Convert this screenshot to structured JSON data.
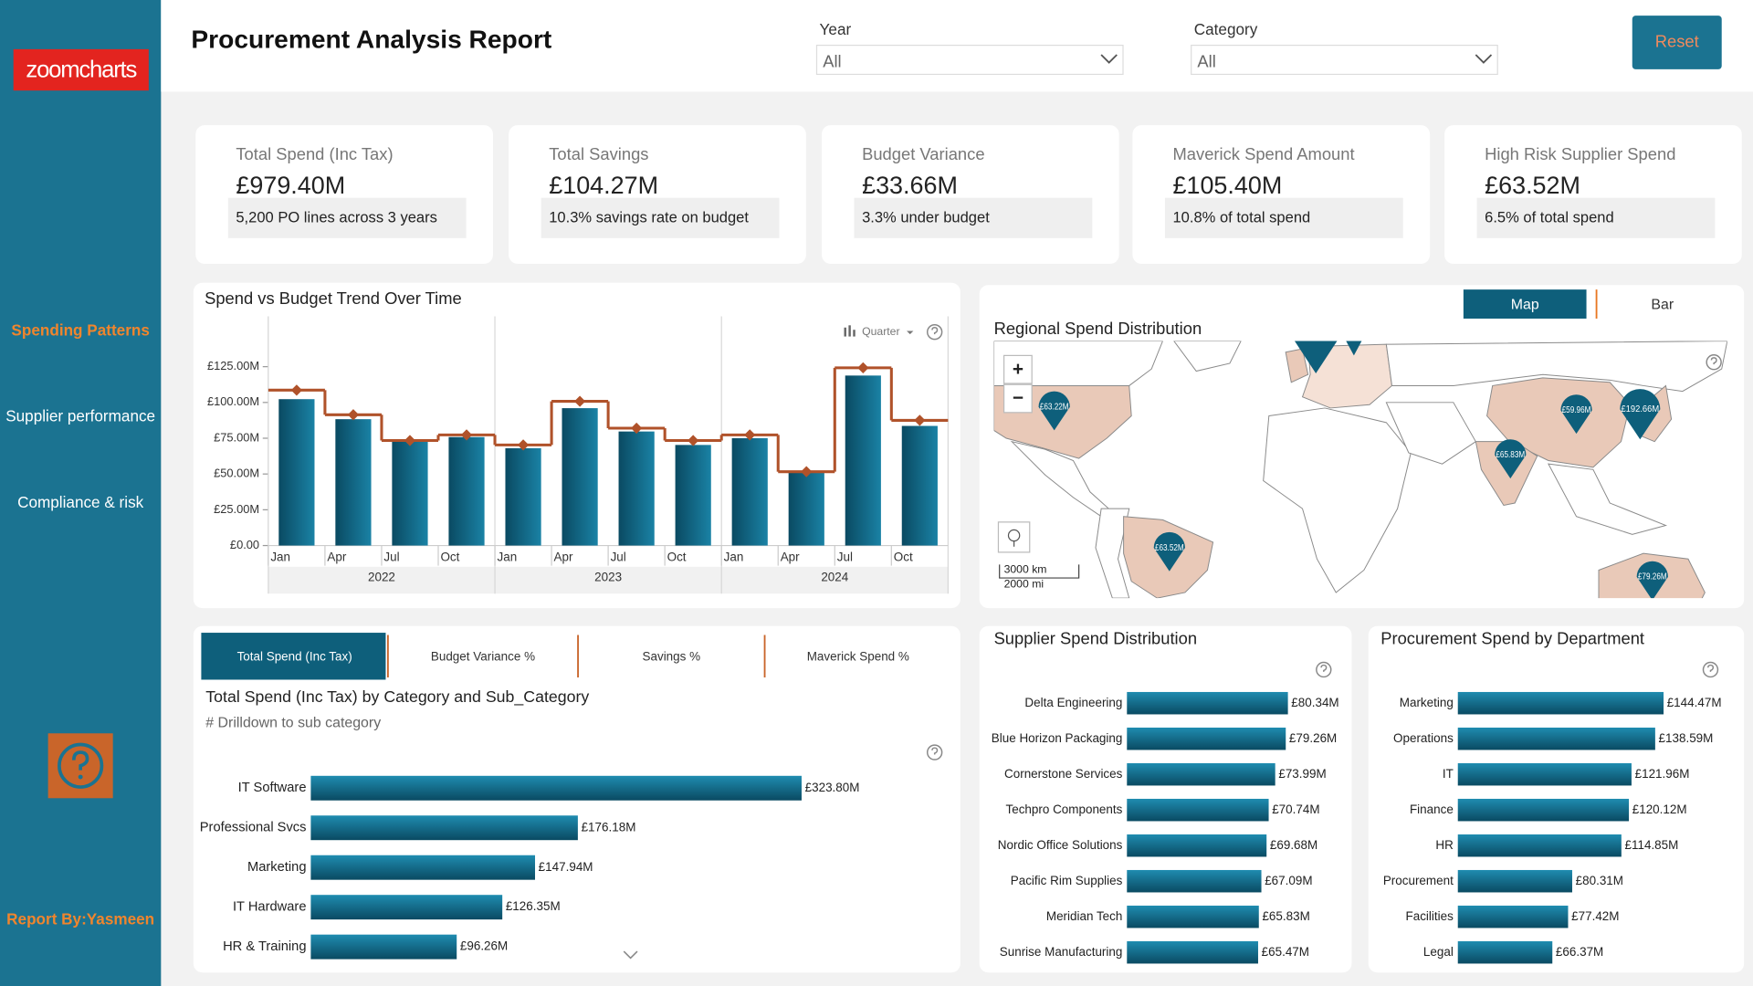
{
  "sidebar": {
    "logo": "zoomcharts",
    "nav": [
      "Spending Patterns",
      "Supplier performance",
      "Compliance & risk"
    ],
    "credit": "Report By:Yasmeen"
  },
  "header": {
    "title": "Procurement Analysis Report",
    "filters": [
      {
        "label": "Year",
        "value": "All"
      },
      {
        "label": "Category",
        "value": "All"
      }
    ],
    "reset": "Reset"
  },
  "kpis": [
    {
      "label": "Total Spend (Inc Tax)",
      "value": "£979.40M",
      "note": "5,200 PO lines across 3 years"
    },
    {
      "label": "Total Savings",
      "value": "£104.27M",
      "note": "10.3% savings rate on budget"
    },
    {
      "label": "Budget Variance",
      "value": "£33.66M",
      "note": "3.3% under budget"
    },
    {
      "label": "Maverick Spend Amount",
      "value": "£105.40M",
      "note": "10.8% of total spend"
    },
    {
      "label": "High Risk Supplier Spend",
      "value": "£63.52M",
      "note": "6.5% of total spend"
    }
  ],
  "chart_data": [
    {
      "type": "bar",
      "title": "Spend vs Budget Trend Over Time",
      "period_control": "Quarter",
      "categories": [
        "Jan",
        "Apr",
        "Jul",
        "Oct",
        "Jan",
        "Apr",
        "Jul",
        "Oct",
        "Jan",
        "Apr",
        "Jul",
        "Oct"
      ],
      "x_groups": [
        "2022",
        "2023",
        "2024"
      ],
      "series": [
        {
          "kind": "bar",
          "color": "#0e5f7b",
          "values": [
            102.3,
            88.3,
            72.7,
            75.8,
            68.0,
            96.0,
            79.7,
            70.3,
            75.0,
            50.8,
            118.8,
            83.6
          ]
        },
        {
          "kind": "step",
          "color": "#b0522a",
          "values": [
            108.6,
            91.4,
            73.4,
            77.3,
            70.3,
            100.8,
            82.0,
            73.4,
            77.3,
            51.6,
            124.2,
            87.5
          ]
        }
      ],
      "ylim": [
        0,
        150
      ],
      "yticks": [
        {
          "value": 0,
          "label": "£0.00"
        },
        {
          "value": 25,
          "label": "£25.00M"
        },
        {
          "value": 50,
          "label": "£50.00M"
        },
        {
          "value": 75,
          "label": "£75.00M"
        },
        {
          "value": 100,
          "label": "£100.00M"
        },
        {
          "value": 125,
          "label": "£125.00M"
        }
      ],
      "grid": false
    },
    {
      "type": "map",
      "title": "Regional Spend Distribution",
      "tabs": [
        "Map",
        "Bar"
      ],
      "zoom": [
        "+",
        "−"
      ],
      "scale_labels": [
        "3000 km",
        "2000 mi"
      ],
      "color": "#0e5f7b",
      "values": [
        63.22,
        63.52,
        59.96,
        192.66,
        65.83,
        79.26
      ],
      "value_labels": [
        "£63.22M",
        "£63.52M",
        "£59.96M",
        "£192.66M",
        "£65.83M",
        "£79.26M"
      ]
    },
    {
      "type": "bar",
      "orientation": "horizontal",
      "tabs": [
        "Total Spend (Inc Tax)",
        "Budget Variance %",
        "Savings %",
        "Maverick Spend %"
      ],
      "title": "Total Spend (Inc Tax) by Category and Sub_Category",
      "subtitle": "# Drilldown to sub category",
      "color": "#0e5f7b",
      "categories": [
        "IT Software",
        "Professional Svcs",
        "Marketing",
        "IT Hardware",
        "HR & Training"
      ],
      "values": [
        323.8,
        176.18,
        147.94,
        126.35,
        96.26
      ],
      "value_labels": [
        "£323.80M",
        "£176.18M",
        "£147.94M",
        "£126.35M",
        "£96.26M"
      ]
    },
    {
      "type": "bar",
      "orientation": "horizontal",
      "title": "Supplier Spend Distribution",
      "color": "#0e5f7b",
      "categories": [
        "Delta Engineering",
        "Blue Horizon Packaging",
        "Cornerstone Services",
        "Techpro Components",
        "Nordic Office Solutions",
        "Pacific Rim Supplies",
        "Meridian Tech",
        "Sunrise Manufacturing"
      ],
      "values": [
        80.34,
        79.26,
        73.99,
        70.74,
        69.68,
        67.09,
        65.83,
        65.47
      ],
      "value_labels": [
        "£80.34M",
        "£79.26M",
        "£73.99M",
        "£70.74M",
        "£69.68M",
        "£67.09M",
        "£65.83M",
        "£65.47M"
      ]
    },
    {
      "type": "bar",
      "orientation": "horizontal",
      "title": "Procurement Spend by Department",
      "color": "#0e5f7b",
      "categories": [
        "Marketing",
        "Operations",
        "IT",
        "Finance",
        "HR",
        "Procurement",
        "Facilities",
        "Legal"
      ],
      "values": [
        144.47,
        138.59,
        121.96,
        120.12,
        114.85,
        80.31,
        77.42,
        66.37
      ],
      "value_labels": [
        "£144.47M",
        "£138.59M",
        "£121.96M",
        "£120.12M",
        "£114.85M",
        "£80.31M",
        "£77.42M",
        "£66.37M"
      ]
    }
  ]
}
